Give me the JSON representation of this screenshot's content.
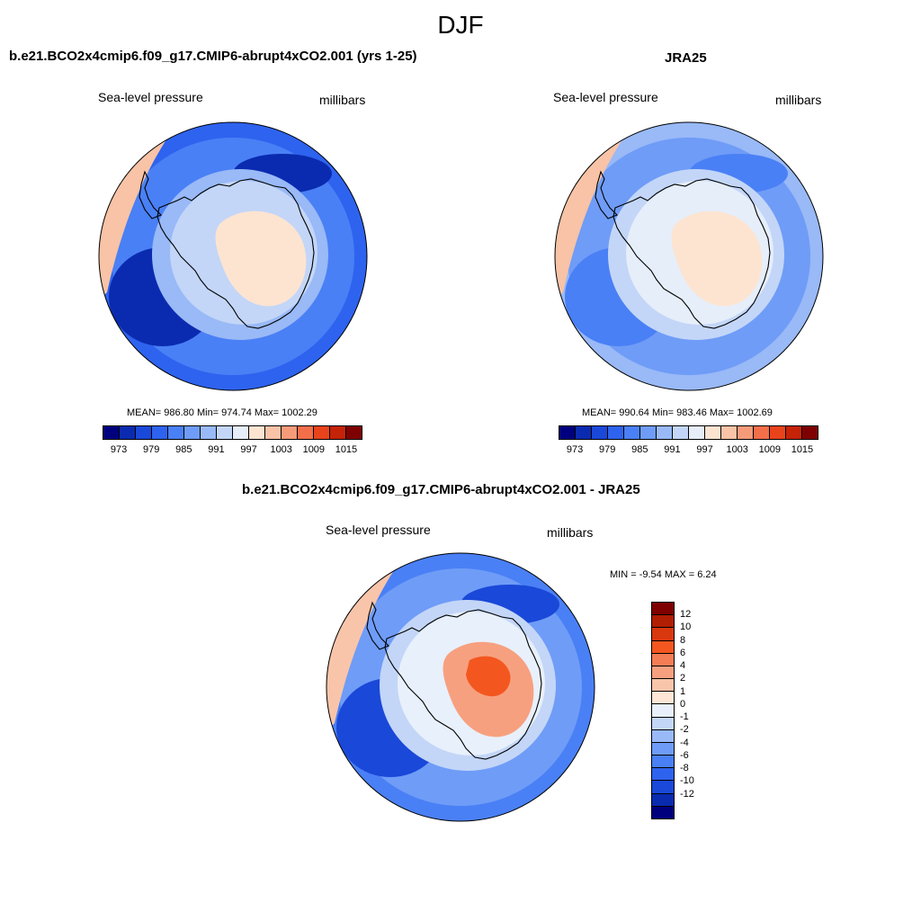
{
  "figure": {
    "title": "DJF"
  },
  "chart_data": [
    {
      "type": "heatmap",
      "panel": "model",
      "title": "b.e21.BCO2x4cmip6.f09_g17.CMIP6-abrupt4xCO2.001 (yrs 1-25)",
      "left_label": "Sea-level pressure",
      "right_label": "millibars",
      "stats_text": "MEAN= 986.80  Min= 974.74  Max= 1002.29",
      "mean": 986.8,
      "min": 974.74,
      "max": 1002.29,
      "projection": "south polar stereographic",
      "colorbar": {
        "orientation": "horizontal",
        "levels": [
          973,
          976,
          979,
          982,
          985,
          988,
          991,
          994,
          997,
          1000,
          1003,
          1006,
          1009,
          1012,
          1015
        ],
        "tick_labels": [
          "973",
          "979",
          "985",
          "991",
          "997",
          "1003",
          "1009",
          "1015"
        ],
        "colors": [
          "#00007e",
          "#0a2bb0",
          "#1a48d8",
          "#2e63ef",
          "#4a80f5",
          "#6f9cf7",
          "#99b9f7",
          "#c3d6f8",
          "#e6eefa",
          "#fde4d1",
          "#f8c3a6",
          "#f59b7a",
          "#f36f4a",
          "#e9431c",
          "#c52308",
          "#7f0000"
        ]
      },
      "colors": {
        "ocean_outer": "#2e63ef",
        "ocean_mid": "#4a80f5",
        "low_center": "#0a2bb0",
        "ring1": "#99b9f7",
        "ring2": "#c3d6f8",
        "interior": "#fde4d1",
        "edge": "#f8c3a6"
      }
    },
    {
      "type": "heatmap",
      "panel": "obs",
      "title": "JRA25",
      "left_label": "Sea-level pressure",
      "right_label": "millibars",
      "stats_text": "MEAN= 990.64  Min= 983.46  Max= 1002.69",
      "mean": 990.64,
      "min": 983.46,
      "max": 1002.69,
      "projection": "south polar stereographic",
      "colorbar": {
        "orientation": "horizontal",
        "levels": [
          973,
          976,
          979,
          982,
          985,
          988,
          991,
          994,
          997,
          1000,
          1003,
          1006,
          1009,
          1012,
          1015
        ],
        "tick_labels": [
          "973",
          "979",
          "985",
          "991",
          "997",
          "1003",
          "1009",
          "1015"
        ],
        "colors": [
          "#00007e",
          "#0a2bb0",
          "#1a48d8",
          "#2e63ef",
          "#4a80f5",
          "#6f9cf7",
          "#99b9f7",
          "#c3d6f8",
          "#e6eefa",
          "#fde4d1",
          "#f8c3a6",
          "#f59b7a",
          "#f36f4a",
          "#e9431c",
          "#c52308",
          "#7f0000"
        ]
      },
      "colors": {
        "ocean_outer": "#99b9f7",
        "ocean_mid": "#6f9cf7",
        "low_center": "#4a80f5",
        "ring1": "#c3d6f8",
        "ring2": "#e6eefa",
        "interior": "#fde4d1",
        "edge": "#f8c3a6"
      }
    },
    {
      "type": "heatmap",
      "panel": "difference",
      "title": "b.e21.BCO2x4cmip6.f09_g17.CMIP6-abrupt4xCO2.001 - JRA25",
      "left_label": "Sea-level pressure",
      "right_label": "millibars",
      "stats_text": "MIN =  -9.54 MAX =   6.24",
      "min": -9.54,
      "max": 6.24,
      "projection": "south polar stereographic",
      "colorbar": {
        "orientation": "vertical",
        "tick_labels": [
          "12",
          "10",
          "8",
          "6",
          "4",
          "2",
          "1",
          "0",
          "-1",
          "-2",
          "-4",
          "-6",
          "-8",
          "-10",
          "-12"
        ],
        "colors": [
          "#7f0000",
          "#b01e04",
          "#d9380f",
          "#f3571f",
          "#f57d55",
          "#f7a07f",
          "#f9c5aa",
          "#fde6d6",
          "#e8f0fb",
          "#c3d6f8",
          "#99b9f7",
          "#6f9cf7",
          "#4a80f5",
          "#2e63ef",
          "#1a48d8",
          "#0a2bb0",
          "#00007e"
        ]
      },
      "colors": {
        "ocean_outer": "#4a80f5",
        "ocean_mid": "#6f9cf7",
        "low_center": "#1a48d8",
        "ring1": "#c3d6f8",
        "ring2": "#e8f0fb",
        "interior": "#f7a07f",
        "core": "#f3571f",
        "edge": "#f9c5aa"
      }
    }
  ]
}
